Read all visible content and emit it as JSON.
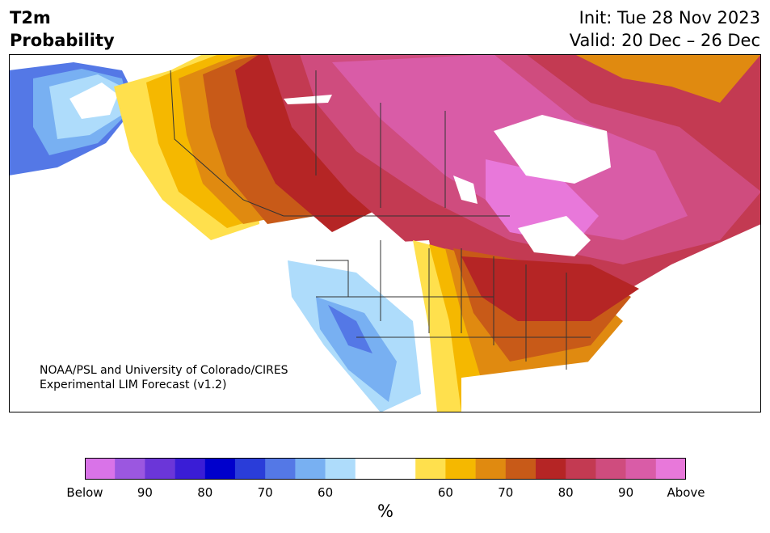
{
  "header": {
    "title_line1": "T2m",
    "title_line2": "Probability",
    "init_label": "Init: Tue 28 Nov 2023",
    "valid_label": "Valid: 20 Dec – 26 Dec"
  },
  "map": {
    "credit_line1": "NOAA/PSL and University of Colorado/CIRES",
    "credit_line2": "Experimental LIM Forecast (v1.2)"
  },
  "colorbar": {
    "colors": [
      "#d973e8",
      "#9b57e0",
      "#6b36d8",
      "#3a1dd6",
      "#0000cc",
      "#2a3dd9",
      "#5478e6",
      "#78b0f2",
      "#aedcfb",
      "#ffffff",
      "#ffffff",
      "#ffe04d",
      "#f5b800",
      "#e08a10",
      "#c85a18",
      "#b52525",
      "#c33a52",
      "#cf4c7e",
      "#d95ca7",
      "#e878da"
    ],
    "tick_labels": [
      "Below",
      "90",
      "80",
      "70",
      "60",
      "60",
      "70",
      "80",
      "90",
      "Above"
    ],
    "unit": "%"
  }
}
